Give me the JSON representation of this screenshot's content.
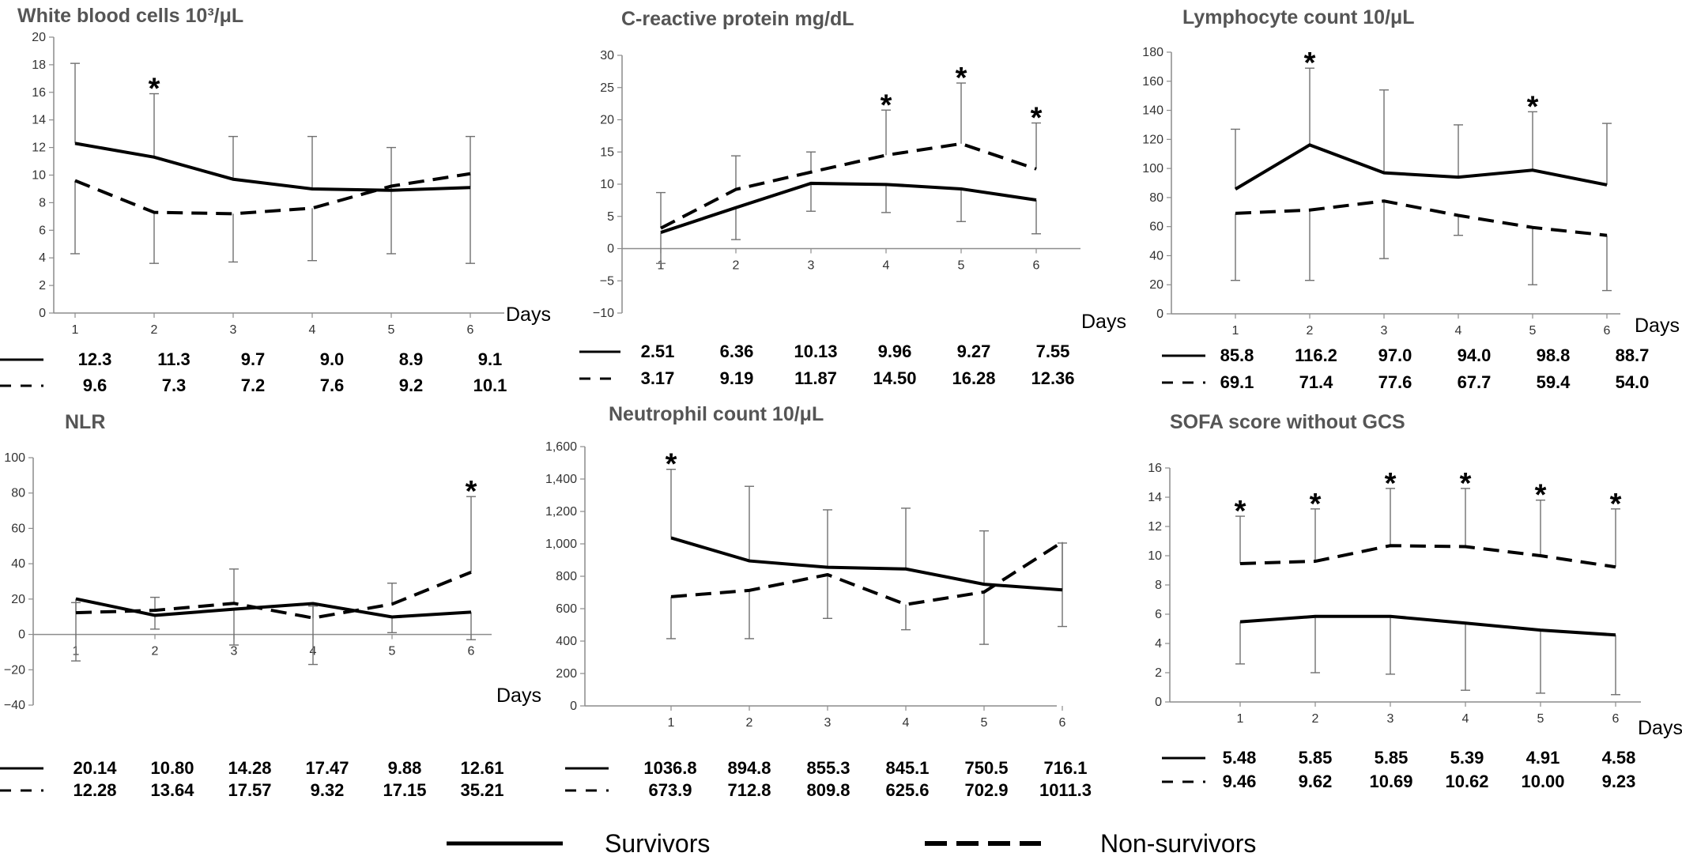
{
  "legend": {
    "survivors": "Survivors",
    "non_survivors": "Non-survivors"
  },
  "chart_data": [
    {
      "type": "line",
      "title": "White blood cells 10³/μL",
      "xlabel": "Days",
      "categories": [
        "1",
        "2",
        "3",
        "4",
        "5",
        "6"
      ],
      "ylim": [
        0,
        20
      ],
      "yticks": [
        "0",
        "2",
        "4",
        "6",
        "8",
        "10",
        "12",
        "14",
        "16",
        "18",
        "20"
      ],
      "series": [
        {
          "name": "Survivors",
          "style": "solid",
          "values": [
            12.3,
            11.3,
            9.7,
            9.0,
            8.9,
            9.1
          ],
          "labels": [
            "12.3",
            "11.3",
            "9.7",
            "9.0",
            "8.9",
            "9.1"
          ],
          "error_upper": [
            18.1,
            15.9,
            12.8,
            12.8,
            12.0,
            12.8
          ]
        },
        {
          "name": "Non-survivors",
          "style": "dashed",
          "values": [
            9.6,
            7.3,
            7.2,
            7.6,
            9.2,
            10.1
          ],
          "labels": [
            "9.6",
            "7.3",
            "7.2",
            "7.6",
            "9.2",
            "10.1"
          ],
          "error_lower": [
            4.3,
            3.6,
            3.7,
            3.8,
            4.3,
            3.6
          ]
        }
      ],
      "significant_days": [
        "2"
      ]
    },
    {
      "type": "line",
      "title": "C-reactive  protein mg/dL",
      "xlabel": "Days",
      "categories": [
        "1",
        "2",
        "3",
        "4",
        "5",
        "6"
      ],
      "ylim": [
        -10,
        30
      ],
      "yticks": [
        "−10",
        "−5",
        "0",
        "5",
        "10",
        "15",
        "20",
        "25",
        "30"
      ],
      "series": [
        {
          "name": "Survivors",
          "style": "solid",
          "values": [
            2.51,
            6.36,
            10.13,
            9.96,
            9.27,
            7.55
          ],
          "labels": [
            "2.51",
            "6.36",
            "10.13",
            "9.96",
            "9.27",
            "7.55"
          ],
          "error_lower": [
            -2.3,
            1.4,
            5.8,
            5.6,
            4.2,
            2.3
          ]
        },
        {
          "name": "Non-survivors",
          "style": "dashed",
          "values": [
            3.17,
            9.19,
            11.87,
            14.5,
            16.28,
            12.36
          ],
          "labels": [
            "3.17",
            "9.19",
            "11.87",
            "14.50",
            "16.28",
            "12.36"
          ],
          "error_upper": [
            8.7,
            14.4,
            15.0,
            21.5,
            25.7,
            19.5
          ]
        }
      ],
      "significant_days": [
        "4",
        "5",
        "6"
      ]
    },
    {
      "type": "line",
      "title": "Lymphocyte count 10/μL",
      "xlabel": "Days",
      "categories": [
        "1",
        "2",
        "3",
        "4",
        "5",
        "6"
      ],
      "ylim": [
        0,
        180
      ],
      "yticks": [
        "0",
        "20",
        "40",
        "60",
        "80",
        "100",
        "120",
        "140",
        "160",
        "180"
      ],
      "series": [
        {
          "name": "Survivors",
          "style": "solid",
          "values": [
            85.8,
            116.2,
            97.0,
            94.0,
            98.8,
            88.7
          ],
          "labels": [
            "85.8",
            "116.2",
            "97.0",
            "94.0",
            "98.8",
            "88.7"
          ],
          "error_upper": [
            127,
            169,
            154,
            130,
            139,
            131
          ]
        },
        {
          "name": "Non-survivors",
          "style": "dashed",
          "values": [
            69.1,
            71.4,
            77.6,
            67.7,
            59.4,
            54.0
          ],
          "labels": [
            "69.1",
            "71.4",
            "77.6",
            "67.7",
            "59.4",
            "54.0"
          ],
          "error_lower": [
            23,
            23,
            38,
            54,
            20,
            16
          ]
        }
      ],
      "significant_days": [
        "2",
        "5"
      ]
    },
    {
      "type": "line",
      "title": "NLR",
      "xlabel": "Days",
      "categories": [
        "1",
        "2",
        "3",
        "4",
        "5",
        "6"
      ],
      "ylim": [
        -40,
        100
      ],
      "yticks": [
        "−40",
        "−20",
        "0",
        "20",
        "40",
        "60",
        "80",
        "100"
      ],
      "series": [
        {
          "name": "Survivors",
          "style": "solid",
          "values": [
            20.14,
            10.8,
            14.28,
            17.47,
            9.88,
            12.61
          ],
          "labels": [
            "20.14",
            "10.80",
            "14.28",
            "17.47",
            "9.88",
            "12.61"
          ],
          "error_lower": [
            -15,
            3,
            -6,
            -17,
            1,
            -3
          ]
        },
        {
          "name": "Non-survivors",
          "style": "dashed",
          "values": [
            12.28,
            13.64,
            17.57,
            9.32,
            17.15,
            35.21
          ],
          "labels": [
            "12.28",
            "13.64",
            "17.57",
            "9.32",
            "17.15",
            "35.21"
          ],
          "error_upper": [
            18,
            21,
            37,
            16,
            29,
            78
          ]
        }
      ],
      "significant_days": [
        "6"
      ]
    },
    {
      "type": "line",
      "title": "Neutrophil count 10/μL",
      "xlabel": "",
      "categories": [
        "1",
        "2",
        "3",
        "4",
        "5",
        "6"
      ],
      "ylim": [
        0,
        1600
      ],
      "yticks": [
        "0",
        "200",
        "400",
        "600",
        "800",
        "1,000",
        "1,200",
        "1,400",
        "1,600"
      ],
      "series": [
        {
          "name": "Survivors",
          "style": "solid",
          "values": [
            1036.8,
            894.8,
            855.3,
            845.1,
            750.5,
            716.1
          ],
          "labels": [
            "1036.8",
            "894.8",
            "855.3",
            "845.1",
            "750.5",
            "716.1"
          ],
          "error_upper": [
            1460,
            1355,
            1210,
            1220,
            1080,
            1005
          ]
        },
        {
          "name": "Non-survivors",
          "style": "dashed",
          "values": [
            673.9,
            712.8,
            809.8,
            625.6,
            702.9,
            1011.3
          ],
          "labels": [
            "673.9",
            "712.8",
            "809.8",
            "625.6",
            "702.9",
            "1011.3"
          ],
          "error_lower": [
            415,
            415,
            540,
            470,
            380,
            490
          ]
        }
      ],
      "significant_days": [
        "1"
      ]
    },
    {
      "type": "line",
      "title": "SOFA score without GCS",
      "xlabel": "Days",
      "categories": [
        "1",
        "2",
        "3",
        "4",
        "5",
        "6"
      ],
      "ylim": [
        0,
        16
      ],
      "yticks": [
        "0",
        "2",
        "4",
        "6",
        "8",
        "10",
        "12",
        "14",
        "16"
      ],
      "series": [
        {
          "name": "Survivors",
          "style": "solid",
          "values": [
            5.48,
            5.85,
            5.85,
            5.39,
            4.91,
            4.58
          ],
          "labels": [
            "5.48",
            "5.85",
            "5.85",
            "5.39",
            "4.91",
            "4.58"
          ],
          "error_lower": [
            2.6,
            2.0,
            1.9,
            0.8,
            0.6,
            0.5
          ]
        },
        {
          "name": "Non-survivors",
          "style": "dashed",
          "values": [
            9.46,
            9.62,
            10.69,
            10.62,
            10.0,
            9.23
          ],
          "labels": [
            "9.46",
            "9.62",
            "10.69",
            "10.62",
            "10.00",
            "9.23"
          ],
          "error_upper": [
            12.7,
            13.2,
            14.6,
            14.6,
            13.8,
            13.2
          ]
        }
      ],
      "significant_days": [
        "1",
        "2",
        "3",
        "4",
        "5",
        "6"
      ]
    }
  ]
}
